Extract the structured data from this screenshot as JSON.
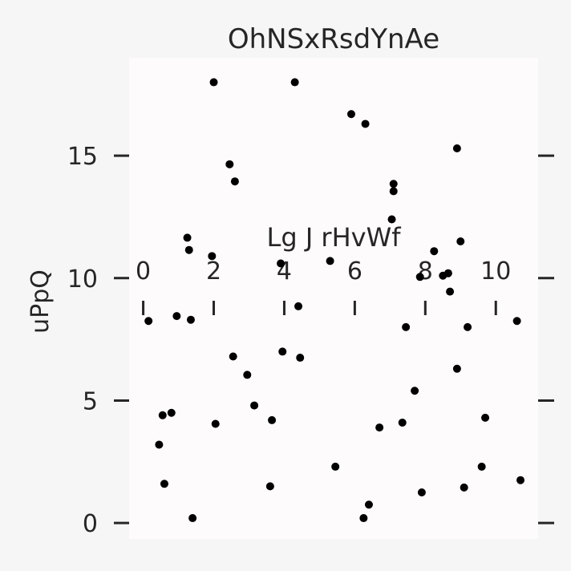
{
  "chart_data": {
    "type": "scatter",
    "title": "OhNSxRsdYnAe",
    "xlabel": "Lg  J rHvWf",
    "ylabel": "uPpQ",
    "xlim": [
      -0.4,
      11.2
    ],
    "ylim": [
      -0.65,
      19.0
    ],
    "x_ticks": [
      0,
      2,
      4,
      6,
      8,
      10
    ],
    "x_tick_labels": [
      "0",
      "2",
      "4",
      "6",
      "8",
      "10"
    ],
    "y_ticks": [
      0,
      5,
      10,
      15
    ],
    "y_tick_labels": [
      "0",
      "5",
      "10",
      "15"
    ],
    "grid": false,
    "colors": {
      "background": "#f7f6f6",
      "plot_background": "#fdfbfc",
      "marker": "#000000",
      "text": "#262626"
    },
    "series": [
      {
        "points": [
          [
            0.15,
            8.25
          ],
          [
            0.45,
            3.2
          ],
          [
            0.55,
            4.4
          ],
          [
            0.6,
            1.6
          ],
          [
            0.8,
            4.5
          ],
          [
            0.95,
            8.45
          ],
          [
            1.25,
            11.65
          ],
          [
            1.3,
            11.15
          ],
          [
            1.35,
            8.3
          ],
          [
            1.4,
            0.2
          ],
          [
            1.95,
            10.9
          ],
          [
            2.0,
            18.0
          ],
          [
            2.05,
            4.05
          ],
          [
            2.45,
            14.65
          ],
          [
            2.55,
            6.8
          ],
          [
            2.6,
            13.95
          ],
          [
            2.95,
            6.05
          ],
          [
            3.15,
            4.8
          ],
          [
            3.6,
            1.5
          ],
          [
            3.65,
            4.2
          ],
          [
            3.9,
            10.6
          ],
          [
            3.95,
            7.0
          ],
          [
            4.3,
            18.0
          ],
          [
            4.4,
            8.85
          ],
          [
            4.45,
            6.75
          ],
          [
            5.3,
            10.7
          ],
          [
            5.45,
            2.3
          ],
          [
            5.9,
            16.7
          ],
          [
            6.25,
            0.2
          ],
          [
            6.3,
            16.3
          ],
          [
            6.4,
            0.75
          ],
          [
            6.7,
            3.9
          ],
          [
            7.05,
            12.4
          ],
          [
            7.1,
            13.85
          ],
          [
            7.1,
            13.55
          ],
          [
            7.35,
            4.1
          ],
          [
            7.45,
            8.0
          ],
          [
            7.7,
            5.4
          ],
          [
            7.85,
            10.05
          ],
          [
            7.9,
            1.25
          ],
          [
            8.25,
            11.1
          ],
          [
            8.5,
            10.1
          ],
          [
            8.65,
            10.2
          ],
          [
            8.7,
            9.45
          ],
          [
            8.9,
            15.3
          ],
          [
            8.9,
            6.3
          ],
          [
            9.0,
            11.5
          ],
          [
            9.1,
            1.45
          ],
          [
            9.2,
            8.0
          ],
          [
            9.6,
            2.3
          ],
          [
            9.7,
            4.3
          ],
          [
            10.6,
            8.25
          ],
          [
            10.7,
            1.75
          ]
        ]
      }
    ]
  }
}
